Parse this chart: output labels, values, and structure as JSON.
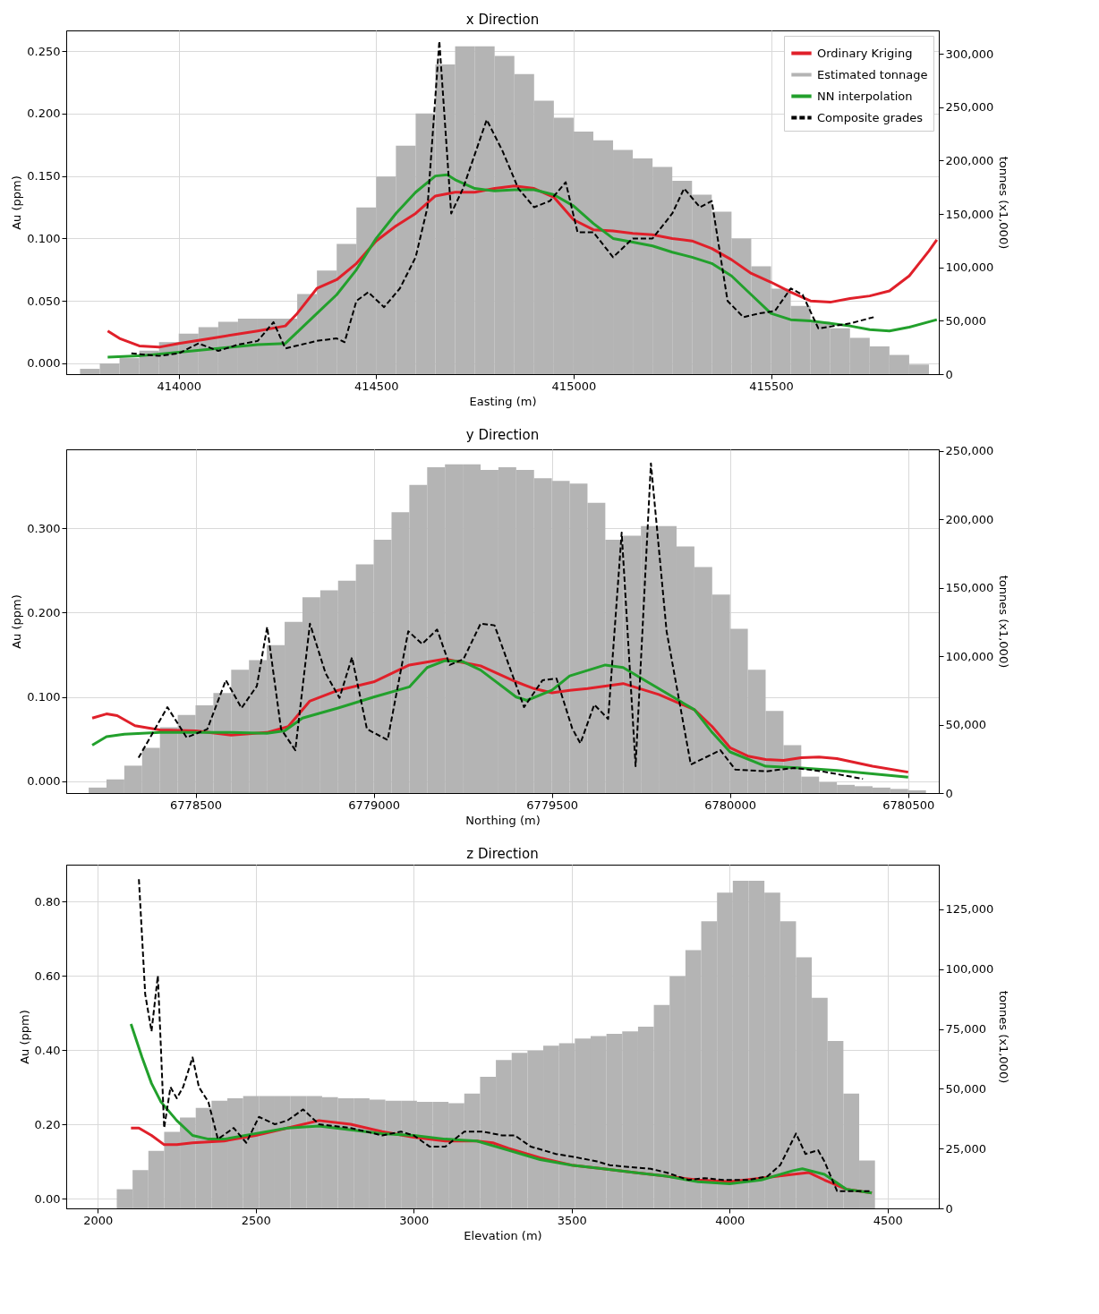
{
  "chart_data": [
    {
      "type": "line",
      "title": "x Direction",
      "xlabel": "Easting (m)",
      "ylabel": "Au (ppm)",
      "y2label": "tonnes (x1,000)",
      "grid": true,
      "legend": "top right",
      "xlim": [
        413715,
        415925
      ],
      "xticks": [
        414000,
        414500,
        415000,
        415500
      ],
      "ylim": [
        -0.0086,
        0.2665
      ],
      "yticks": [
        {
          "value": 0,
          "label": "0.000"
        },
        {
          "value": 0.05,
          "label": "0.050"
        },
        {
          "value": 0.1,
          "label": "0.100"
        },
        {
          "value": 0.15,
          "label": "0.150"
        },
        {
          "value": 0.2,
          "label": "0.200"
        },
        {
          "value": 0.25,
          "label": "0.250"
        }
      ],
      "y2lim": [
        0,
        321800
      ],
      "y2ticks": [
        {
          "value": 0,
          "label": "0"
        },
        {
          "value": 50000,
          "label": "50,000"
        },
        {
          "value": 100000,
          "label": "100,000"
        },
        {
          "value": 150000,
          "label": "150,000"
        },
        {
          "value": 200000,
          "label": "200,000"
        },
        {
          "value": 250000,
          "label": "250,000"
        },
        {
          "value": 300000,
          "label": "300,000"
        }
      ],
      "series": [
        {
          "name": "Ordinary Kriging",
          "type": "line",
          "color": "#e0202a",
          "line_style": "solid",
          "x": [
            413820,
            413850,
            413900,
            413950,
            414000,
            414100,
            414200,
            414270,
            414300,
            414350,
            414400,
            414450,
            414500,
            414550,
            414600,
            414650,
            414700,
            414750,
            414800,
            414850,
            414900,
            414950,
            415000,
            415050,
            415100,
            415150,
            415200,
            415250,
            415300,
            415350,
            415400,
            415450,
            415500,
            415550,
            415600,
            415650,
            415700,
            415750,
            415800,
            415850,
            415900,
            415920
          ],
          "values": [
            0.026,
            0.02,
            0.014,
            0.013,
            0.016,
            0.021,
            0.026,
            0.03,
            0.04,
            0.06,
            0.067,
            0.08,
            0.098,
            0.11,
            0.12,
            0.134,
            0.137,
            0.137,
            0.14,
            0.142,
            0.14,
            0.133,
            0.115,
            0.107,
            0.106,
            0.104,
            0.103,
            0.1,
            0.098,
            0.092,
            0.083,
            0.072,
            0.065,
            0.057,
            0.05,
            0.049,
            0.052,
            0.054,
            0.058,
            0.07,
            0.09,
            0.099
          ]
        },
        {
          "name": "Estimated tonnage",
          "type": "histogram",
          "axis": "y2",
          "color": "#b4b4b4",
          "bins": [
            413750,
            413800,
            413850,
            413900,
            413950,
            414000,
            414050,
            414100,
            414150,
            414200,
            414250,
            414300,
            414350,
            414400,
            414450,
            414500,
            414550,
            414600,
            414650,
            414700,
            414750,
            414800,
            414850,
            414900,
            414950,
            415000,
            415050,
            415100,
            415150,
            415200,
            415250,
            415300,
            415350,
            415400,
            415450,
            415500,
            415550,
            415600,
            415650,
            415700,
            415750,
            415800,
            415850,
            415900
          ],
          "values": [
            5000,
            10000,
            15000,
            22000,
            30000,
            38000,
            44000,
            49000,
            52000,
            52000,
            52000,
            75000,
            97000,
            122000,
            156000,
            185000,
            214000,
            244000,
            290000,
            307000,
            307000,
            298000,
            281000,
            256000,
            240000,
            227000,
            219000,
            210000,
            202000,
            194000,
            181000,
            168000,
            152000,
            127000,
            101000,
            80000,
            64000,
            49000,
            43000,
            34000,
            26000,
            18000,
            9000
          ]
        },
        {
          "name": "NN interpolation",
          "type": "line",
          "color": "#22a02c",
          "line_style": "solid",
          "x": [
            413820,
            413900,
            414000,
            414100,
            414200,
            414270,
            414300,
            414350,
            414400,
            414450,
            414500,
            414550,
            414600,
            414650,
            414680,
            414700,
            414750,
            414800,
            414850,
            414900,
            414950,
            415000,
            415050,
            415100,
            415150,
            415200,
            415250,
            415300,
            415350,
            415400,
            415450,
            415500,
            415550,
            415600,
            415650,
            415700,
            415750,
            415800,
            415850,
            415920
          ],
          "values": [
            0.005,
            0.006,
            0.009,
            0.012,
            0.015,
            0.016,
            0.025,
            0.04,
            0.055,
            0.075,
            0.1,
            0.12,
            0.137,
            0.15,
            0.151,
            0.147,
            0.14,
            0.138,
            0.139,
            0.139,
            0.135,
            0.126,
            0.112,
            0.1,
            0.097,
            0.094,
            0.089,
            0.085,
            0.08,
            0.07,
            0.055,
            0.04,
            0.035,
            0.034,
            0.032,
            0.03,
            0.027,
            0.026,
            0.029,
            0.035
          ]
        },
        {
          "name": "Composite grades",
          "type": "line",
          "color": "#000000",
          "line_style": "dashed",
          "x": [
            413880,
            413950,
            414000,
            414050,
            414100,
            414150,
            414200,
            414240,
            414270,
            414350,
            414400,
            414420,
            414450,
            414480,
            414520,
            414560,
            414600,
            414630,
            414660,
            414690,
            414720,
            414780,
            414820,
            414860,
            414900,
            414940,
            414980,
            415010,
            415050,
            415100,
            415150,
            415200,
            415250,
            415280,
            415320,
            415350,
            415390,
            415430,
            415470,
            415510,
            415550,
            415580,
            415620,
            415700,
            415760
          ],
          "values": [
            0.008,
            0.006,
            0.008,
            0.016,
            0.01,
            0.015,
            0.018,
            0.033,
            0.012,
            0.018,
            0.02,
            0.017,
            0.05,
            0.057,
            0.045,
            0.06,
            0.085,
            0.125,
            0.258,
            0.12,
            0.14,
            0.195,
            0.17,
            0.14,
            0.125,
            0.13,
            0.145,
            0.105,
            0.105,
            0.085,
            0.1,
            0.1,
            0.12,
            0.14,
            0.125,
            0.13,
            0.05,
            0.037,
            0.04,
            0.042,
            0.06,
            0.055,
            0.028,
            0.032,
            0.037
          ]
        }
      ]
    },
    {
      "type": "line",
      "title": "y Direction",
      "xlabel": "Northing (m)",
      "ylabel": "Au (ppm)",
      "y2label": "tonnes (x1,000)",
      "grid": true,
      "xlim": [
        6778137,
        6780586
      ],
      "xticks": [
        6778500,
        6779000,
        6779500,
        6780000,
        6780500
      ],
      "ylim": [
        -0.0138,
        0.3936
      ],
      "yticks": [
        {
          "value": 0,
          "label": "0.000"
        },
        {
          "value": 0.1,
          "label": "0.100"
        },
        {
          "value": 0.2,
          "label": "0.200"
        },
        {
          "value": 0.3,
          "label": "0.300"
        }
      ],
      "y2lim": [
        0,
        251000
      ],
      "y2ticks": [
        {
          "value": 0,
          "label": "0"
        },
        {
          "value": 50000,
          "label": "50,000"
        },
        {
          "value": 100000,
          "label": "100,000"
        },
        {
          "value": 150000,
          "label": "150,000"
        },
        {
          "value": 200000,
          "label": "200,000"
        },
        {
          "value": 250000,
          "label": "250,000"
        }
      ],
      "series": [
        {
          "type": "line",
          "color": "#e0202a",
          "line_style": "solid",
          "x": [
            6778210,
            6778250,
            6778280,
            6778330,
            6778400,
            6778500,
            6778600,
            6778700,
            6778760,
            6778820,
            6778900,
            6779000,
            6779100,
            6779200,
            6779300,
            6779400,
            6779450,
            6779500,
            6779550,
            6779600,
            6779700,
            6779800,
            6779900,
            6779950,
            6780000,
            6780050,
            6780100,
            6780150,
            6780200,
            6780250,
            6780300,
            6780400,
            6780500
          ],
          "values": [
            0.075,
            0.08,
            0.078,
            0.066,
            0.061,
            0.06,
            0.055,
            0.058,
            0.065,
            0.095,
            0.108,
            0.118,
            0.138,
            0.145,
            0.137,
            0.118,
            0.11,
            0.105,
            0.108,
            0.11,
            0.116,
            0.103,
            0.085,
            0.065,
            0.04,
            0.03,
            0.026,
            0.025,
            0.028,
            0.029,
            0.027,
            0.018,
            0.011
          ]
        },
        {
          "type": "histogram",
          "axis": "y2",
          "color": "#b4b4b4",
          "bins": [
            6778200,
            6778250,
            6778300,
            6778350,
            6778400,
            6778450,
            6778500,
            6778550,
            6778600,
            6778650,
            6778700,
            6778750,
            6778800,
            6778850,
            6778900,
            6778950,
            6779000,
            6779050,
            6779100,
            6779150,
            6779200,
            6779250,
            6779300,
            6779350,
            6779400,
            6779450,
            6779500,
            6779550,
            6779600,
            6779650,
            6779700,
            6779750,
            6779800,
            6779850,
            6779900,
            6779950,
            6780000,
            6780050,
            6780100,
            6780150,
            6780200,
            6780250,
            6780300,
            6780350,
            6780400,
            6780450,
            6780500,
            6780550
          ],
          "values": [
            4000,
            10000,
            20000,
            33000,
            48000,
            57000,
            64000,
            73000,
            90000,
            97000,
            108000,
            125000,
            143000,
            148000,
            155000,
            167000,
            185000,
            205000,
            225000,
            238000,
            240000,
            240000,
            236000,
            238000,
            236000,
            230000,
            228000,
            226000,
            212000,
            185000,
            188000,
            195000,
            195000,
            180000,
            165000,
            145000,
            120000,
            90000,
            60000,
            35000,
            12000,
            8000,
            6000,
            5000,
            4000,
            3000,
            2000
          ]
        },
        {
          "type": "line",
          "color": "#22a02c",
          "line_style": "solid",
          "x": [
            6778210,
            6778250,
            6778300,
            6778400,
            6778500,
            6778600,
            6778700,
            6778750,
            6778800,
            6778900,
            6779000,
            6779100,
            6779150,
            6779200,
            6779250,
            6779300,
            6779400,
            6779430,
            6779500,
            6779550,
            6779650,
            6779700,
            6779800,
            6779900,
            6779950,
            6780000,
            6780100,
            6780200,
            6780300,
            6780400,
            6780500
          ],
          "values": [
            0.043,
            0.053,
            0.056,
            0.058,
            0.058,
            0.058,
            0.057,
            0.06,
            0.075,
            0.087,
            0.1,
            0.112,
            0.135,
            0.143,
            0.142,
            0.132,
            0.1,
            0.096,
            0.108,
            0.125,
            0.138,
            0.135,
            0.11,
            0.085,
            0.058,
            0.035,
            0.018,
            0.016,
            0.013,
            0.009,
            0.005
          ]
        },
        {
          "type": "line",
          "color": "#000000",
          "line_style": "dashed",
          "x": [
            6778340,
            6778421,
            6778475,
            6778533,
            6778585,
            6778629,
            6778672,
            6778701,
            6778740,
            6778780,
            6778821,
            6778865,
            6778904,
            6778939,
            6778981,
            6779039,
            6779097,
            6779136,
            6779178,
            6779213,
            6779252,
            6779300,
            6779339,
            6779422,
            6779474,
            6779513,
            6779557,
            6779580,
            6779619,
            6779658,
            6779696,
            6779735,
            6779778,
            6779822,
            6779890,
            6779973,
            6780015,
            6780102,
            6780180,
            6780257,
            6780373
          ],
          "values": [
            0.028,
            0.088,
            0.052,
            0.062,
            0.12,
            0.087,
            0.113,
            0.183,
            0.062,
            0.037,
            0.187,
            0.128,
            0.099,
            0.147,
            0.062,
            0.049,
            0.178,
            0.163,
            0.18,
            0.138,
            0.145,
            0.187,
            0.185,
            0.088,
            0.12,
            0.122,
            0.063,
            0.045,
            0.091,
            0.074,
            0.295,
            0.018,
            0.377,
            0.178,
            0.02,
            0.037,
            0.014,
            0.012,
            0.016,
            0.012,
            0.003
          ]
        }
      ]
    },
    {
      "type": "line",
      "title": "z Direction",
      "xlabel": "Elevation (m)",
      "ylabel": "Au (ppm)",
      "y2label": "tonnes (x1,000)",
      "grid": true,
      "xlim": [
        1900,
        4662
      ],
      "xticks": [
        2000,
        2500,
        3000,
        3500,
        4000,
        4500
      ],
      "ylim": [
        -0.0265,
        0.899
      ],
      "yticks": [
        {
          "value": 0,
          "label": "0.00"
        },
        {
          "value": 0.2,
          "label": "0.20"
        },
        {
          "value": 0.4,
          "label": "0.40"
        },
        {
          "value": 0.6,
          "label": "0.60"
        },
        {
          "value": 0.8,
          "label": "0.80"
        }
      ],
      "y2lim": [
        0,
        143700
      ],
      "y2ticks": [
        {
          "value": 0,
          "label": "0"
        },
        {
          "value": 25000,
          "label": "25,000"
        },
        {
          "value": 50000,
          "label": "50,000"
        },
        {
          "value": 75000,
          "label": "75,000"
        },
        {
          "value": 100000,
          "label": "100,000"
        },
        {
          "value": 125000,
          "label": "125,000"
        }
      ],
      "series": [
        {
          "type": "line",
          "color": "#e0202a",
          "line_style": "solid",
          "x": [
            2105,
            2130,
            2170,
            2210,
            2250,
            2300,
            2400,
            2500,
            2600,
            2700,
            2800,
            2900,
            3000,
            3100,
            3200,
            3250,
            3300,
            3400,
            3500,
            3600,
            3700,
            3800,
            3900,
            4000,
            4100,
            4200,
            4250,
            4300,
            4370,
            4450
          ],
          "values": [
            0.19,
            0.19,
            0.17,
            0.145,
            0.145,
            0.15,
            0.155,
            0.17,
            0.19,
            0.21,
            0.2,
            0.18,
            0.165,
            0.155,
            0.155,
            0.15,
            0.135,
            0.11,
            0.09,
            0.08,
            0.07,
            0.06,
            0.05,
            0.045,
            0.055,
            0.065,
            0.07,
            0.05,
            0.025,
            0.015
          ]
        },
        {
          "type": "histogram",
          "axis": "y2",
          "color": "#b4b4b4",
          "bins": [
            2060,
            2110,
            2160,
            2210,
            2260,
            2310,
            2360,
            2410,
            2460,
            2510,
            2560,
            2610,
            2660,
            2710,
            2760,
            2810,
            2860,
            2910,
            2960,
            3010,
            3060,
            3110,
            3160,
            3210,
            3260,
            3310,
            3360,
            3410,
            3460,
            3510,
            3560,
            3610,
            3660,
            3710,
            3760,
            3810,
            3860,
            3910,
            3960,
            4010,
            4060,
            4110,
            4160,
            4210,
            4260,
            4310,
            4360,
            4410,
            4460
          ],
          "values": [
            8000,
            16000,
            24000,
            32000,
            38000,
            42000,
            45000,
            46000,
            47000,
            47000,
            47000,
            47000,
            47000,
            46500,
            46000,
            46000,
            45500,
            45000,
            45000,
            44500,
            44500,
            44000,
            48000,
            55000,
            62000,
            65000,
            66000,
            68000,
            69000,
            71000,
            72000,
            73000,
            74000,
            76000,
            85000,
            97000,
            108000,
            120000,
            132000,
            137000,
            137000,
            132000,
            120000,
            105000,
            88000,
            70000,
            48000,
            20000
          ]
        },
        {
          "type": "line",
          "color": "#22a02c",
          "line_style": "solid",
          "x": [
            2105,
            2140,
            2170,
            2200,
            2250,
            2300,
            2350,
            2400,
            2500,
            2600,
            2700,
            2800,
            2900,
            3000,
            3100,
            3200,
            3300,
            3400,
            3500,
            3600,
            3700,
            3800,
            3900,
            4000,
            4100,
            4200,
            4230,
            4300,
            4370,
            4450
          ],
          "values": [
            0.47,
            0.38,
            0.31,
            0.26,
            0.21,
            0.17,
            0.16,
            0.16,
            0.175,
            0.19,
            0.195,
            0.185,
            0.175,
            0.17,
            0.16,
            0.155,
            0.13,
            0.105,
            0.09,
            0.08,
            0.07,
            0.06,
            0.045,
            0.04,
            0.05,
            0.075,
            0.08,
            0.065,
            0.025,
            0.015
          ]
        },
        {
          "type": "line",
          "color": "#000000",
          "line_style": "dashed",
          "x": [
            2130,
            2150,
            2170,
            2190,
            2200,
            2210,
            2230,
            2250,
            2270,
            2300,
            2320,
            2350,
            2380,
            2430,
            2470,
            2510,
            2560,
            2600,
            2650,
            2700,
            2800,
            2850,
            2900,
            2960,
            3000,
            3050,
            3100,
            3160,
            3220,
            3280,
            3320,
            3370,
            3450,
            3520,
            3580,
            3620,
            3680,
            3750,
            3800,
            3870,
            3920,
            3980,
            4060,
            4120,
            4160,
            4210,
            4240,
            4280,
            4300,
            4340,
            4400,
            4450
          ],
          "values": [
            0.86,
            0.55,
            0.45,
            0.6,
            0.4,
            0.19,
            0.3,
            0.27,
            0.3,
            0.38,
            0.3,
            0.26,
            0.16,
            0.19,
            0.15,
            0.22,
            0.2,
            0.21,
            0.24,
            0.2,
            0.19,
            0.18,
            0.17,
            0.18,
            0.17,
            0.14,
            0.14,
            0.18,
            0.18,
            0.17,
            0.17,
            0.14,
            0.12,
            0.11,
            0.1,
            0.09,
            0.085,
            0.08,
            0.07,
            0.05,
            0.055,
            0.05,
            0.05,
            0.06,
            0.09,
            0.175,
            0.12,
            0.13,
            0.1,
            0.02,
            0.02,
            0.02
          ]
        }
      ]
    }
  ]
}
